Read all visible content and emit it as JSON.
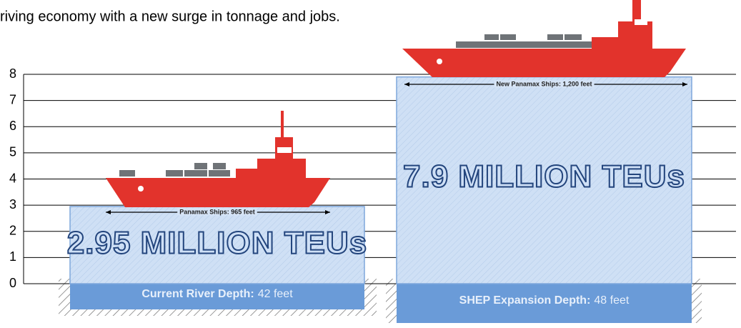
{
  "intro_text": "riving economy with a new surge in tonnage and jobs.",
  "chart_data": {
    "type": "bar",
    "categories": [
      null,
      null
    ],
    "values": [
      2.95,
      7.9
    ],
    "value_labels": [
      "2.95 MILLION TEUs",
      "7.9 MILLION TEUs"
    ],
    "color": "#c9dcf3",
    "ylim": [
      0,
      8
    ],
    "yticks": [
      0,
      1,
      2,
      3,
      4,
      5,
      6,
      7,
      8
    ],
    "grid": true,
    "ship_labels": [
      "Panamax Ships: 965 feet",
      "New Panamax Ships: 1,200 feet"
    ],
    "depth_labels": [
      {
        "label": "Current River Depth:",
        "value": "42 feet"
      },
      {
        "label": "SHEP Expansion Depth:",
        "value": "48 feet"
      }
    ]
  }
}
